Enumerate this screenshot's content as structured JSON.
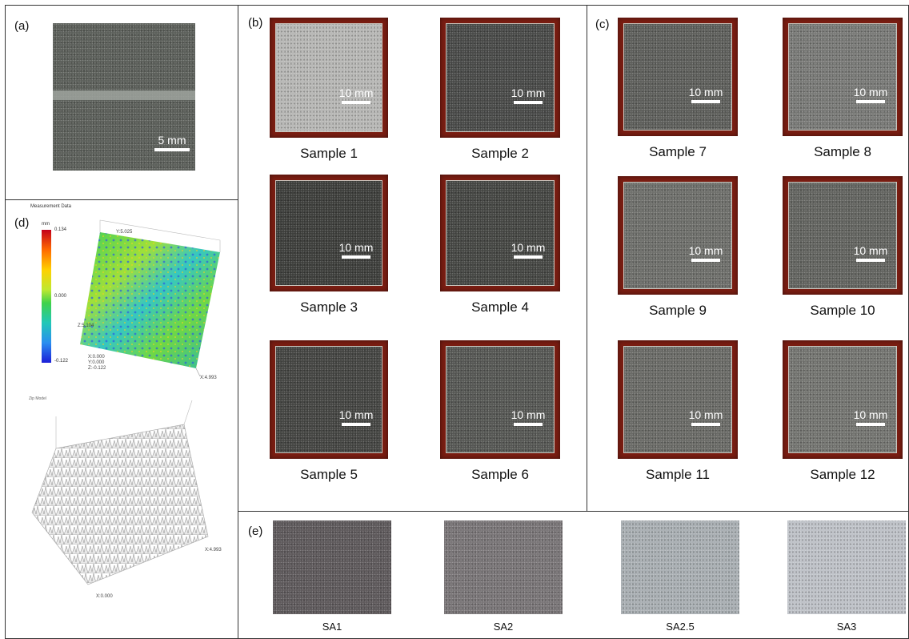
{
  "panels": {
    "a": {
      "label": "(a)",
      "scale": "5 mm"
    },
    "b": {
      "label": "(b)",
      "samples": [
        {
          "caption": "Sample 1",
          "scale": "10 mm",
          "surface": "#b8b8b6"
        },
        {
          "caption": "Sample 2",
          "scale": "10 mm",
          "surface": "#4a4b49"
        },
        {
          "caption": "Sample 3",
          "scale": "10 mm",
          "surface": "#3e3f3c"
        },
        {
          "caption": "Sample 4",
          "scale": "10 mm",
          "surface": "#464744"
        },
        {
          "caption": "Sample 5",
          "scale": "10 mm",
          "surface": "#454643"
        },
        {
          "caption": "Sample 6",
          "scale": "10 mm",
          "surface": "#575855"
        }
      ]
    },
    "c": {
      "label": "(c)",
      "samples": [
        {
          "caption": "Sample 7",
          "scale": "10 mm",
          "surface": "#5f605c"
        },
        {
          "caption": "Sample 8",
          "scale": "10 mm",
          "surface": "#7a7b78"
        },
        {
          "caption": "Sample 9",
          "scale": "10 mm",
          "surface": "#6f706c"
        },
        {
          "caption": "Sample 10",
          "scale": "10 mm",
          "surface": "#646561"
        },
        {
          "caption": "Sample 11",
          "scale": "10 mm",
          "surface": "#6b6c68"
        },
        {
          "caption": "Sample 12",
          "scale": "10 mm",
          "surface": "#757672"
        }
      ]
    },
    "d": {
      "label": "(d)",
      "title": "Measurement Data",
      "colorbar": {
        "max": "0.134",
        "mid": "0.000",
        "min": "-0.122",
        "unit": "mm"
      },
      "axis_labels": {
        "y_top": "Y:5.025",
        "z_mid": "Z:5.104",
        "origin": "X:0.000\nY:0.000\nZ:-0.122",
        "x_end": "X:4.993",
        "x_end_bottom": "X:4.993",
        "origin_bottom": "X:0.000",
        "bottom_title": "Zip Model"
      }
    },
    "e": {
      "label": "(e)",
      "grades": [
        {
          "caption": "SA1",
          "color": "#5f5a5c"
        },
        {
          "caption": "SA2",
          "color": "#7a7678"
        },
        {
          "caption": "SA2.5",
          "color": "#aab0b4"
        },
        {
          "caption": "SA3",
          "color": "#bfc2c8"
        }
      ]
    }
  }
}
